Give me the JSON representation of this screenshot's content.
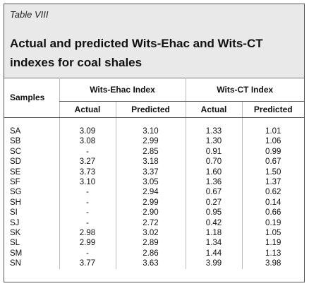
{
  "table_label": "Table VIII",
  "title": "Actual and predicted Wits-Ehac and Wits-CT indexes for coal shales",
  "headers": {
    "samples": "Samples",
    "group1": "Wits-Ehac Index",
    "group2": "Wits-CT Index",
    "actual": "Actual",
    "predicted": "Predicted"
  },
  "rows": [
    {
      "sample": "SA",
      "ehac_actual": "3.09",
      "ehac_predicted": "3.10",
      "ct_actual": "1.33",
      "ct_predicted": "1.01"
    },
    {
      "sample": "SB",
      "ehac_actual": "3.08",
      "ehac_predicted": "2.99",
      "ct_actual": "1.30",
      "ct_predicted": "1.06"
    },
    {
      "sample": "SC",
      "ehac_actual": "-",
      "ehac_predicted": "2.85",
      "ct_actual": "0.91",
      "ct_predicted": "0.99"
    },
    {
      "sample": "SD",
      "ehac_actual": "3.27",
      "ehac_predicted": "3.18",
      "ct_actual": "0.70",
      "ct_predicted": "0.67"
    },
    {
      "sample": "SE",
      "ehac_actual": "3.73",
      "ehac_predicted": "3.37",
      "ct_actual": "1.60",
      "ct_predicted": "1.50"
    },
    {
      "sample": "SF",
      "ehac_actual": "3.10",
      "ehac_predicted": "3.05",
      "ct_actual": "1.36",
      "ct_predicted": "1.37"
    },
    {
      "sample": "SG",
      "ehac_actual": "-",
      "ehac_predicted": "2.94",
      "ct_actual": "0.67",
      "ct_predicted": "0.62"
    },
    {
      "sample": "SH",
      "ehac_actual": "-",
      "ehac_predicted": "2.99",
      "ct_actual": "0.27",
      "ct_predicted": "0.14"
    },
    {
      "sample": "SI",
      "ehac_actual": "-",
      "ehac_predicted": "2.90",
      "ct_actual": "0.95",
      "ct_predicted": "0.66"
    },
    {
      "sample": "SJ",
      "ehac_actual": "-",
      "ehac_predicted": "2.72",
      "ct_actual": "0.42",
      "ct_predicted": "0.19"
    },
    {
      "sample": "SK",
      "ehac_actual": "2.98",
      "ehac_predicted": "3.02",
      "ct_actual": "1.18",
      "ct_predicted": "1.05"
    },
    {
      "sample": "SL",
      "ehac_actual": "2.99",
      "ehac_predicted": "2.89",
      "ct_actual": "1.34",
      "ct_predicted": "1.19"
    },
    {
      "sample": "SM",
      "ehac_actual": "-",
      "ehac_predicted": "2.86",
      "ct_actual": "1.44",
      "ct_predicted": "1.13"
    },
    {
      "sample": "SN",
      "ehac_actual": "3.77",
      "ehac_predicted": "3.63",
      "ct_actual": "3.99",
      "ct_predicted": "3.98"
    }
  ]
}
